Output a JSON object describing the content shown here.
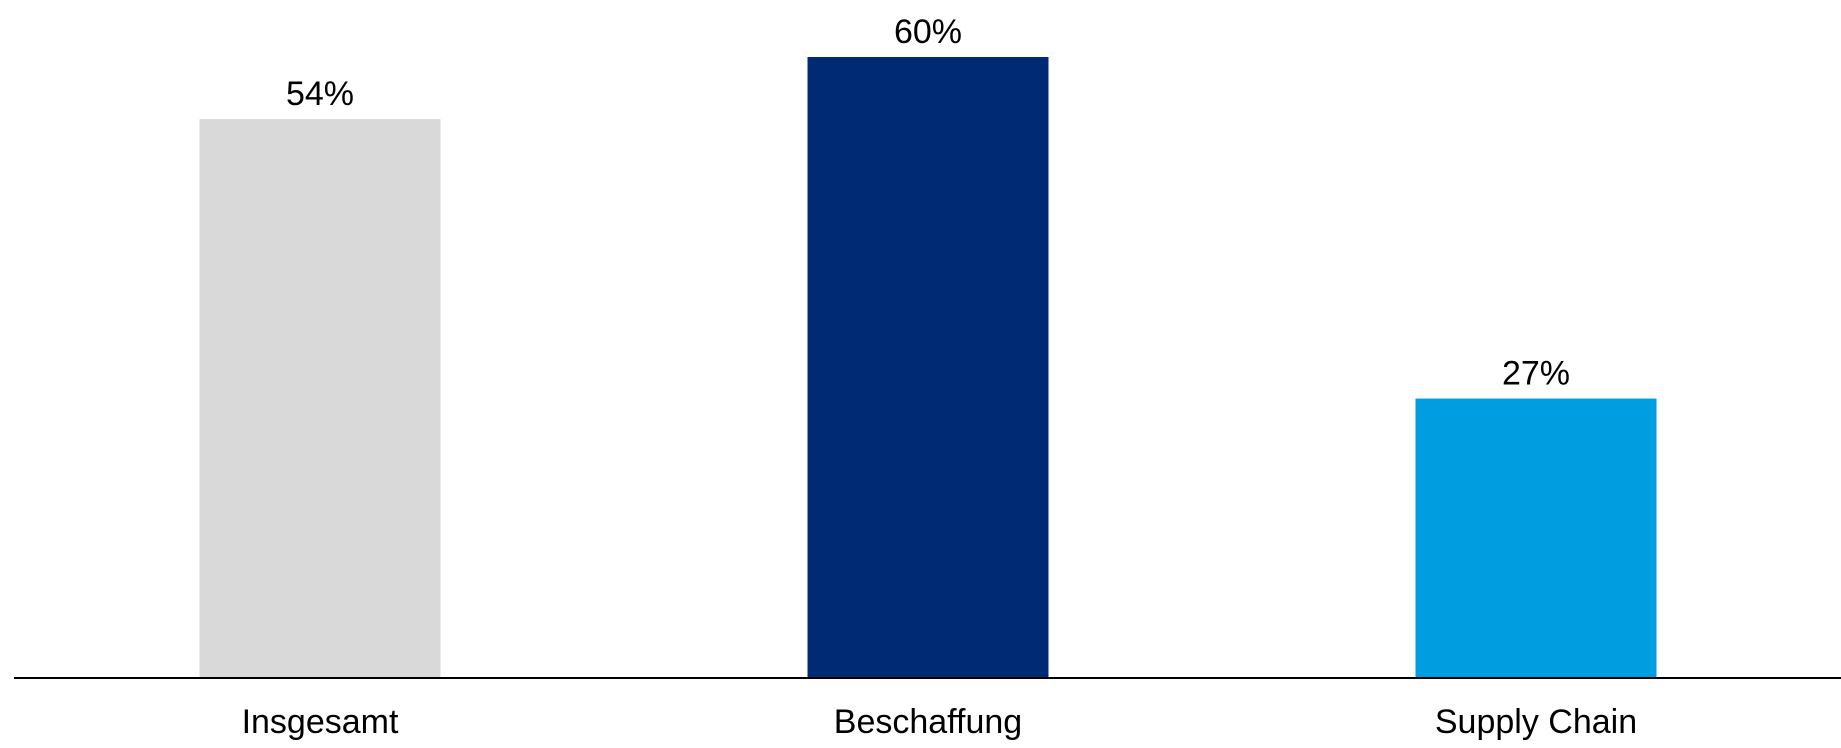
{
  "chart_data": {
    "type": "bar",
    "categories": [
      "Insgesamt",
      "Beschaffung",
      "Supply Chain"
    ],
    "values": [
      54,
      60,
      27
    ],
    "value_labels": [
      "54%",
      "60%",
      "27%"
    ],
    "colors": [
      "#d9d9d9",
      "#002b74",
      "#009ee0"
    ],
    "title": "",
    "xlabel": "",
    "ylabel": "",
    "ylim": [
      0,
      60
    ],
    "grid": false,
    "legend": "none"
  }
}
